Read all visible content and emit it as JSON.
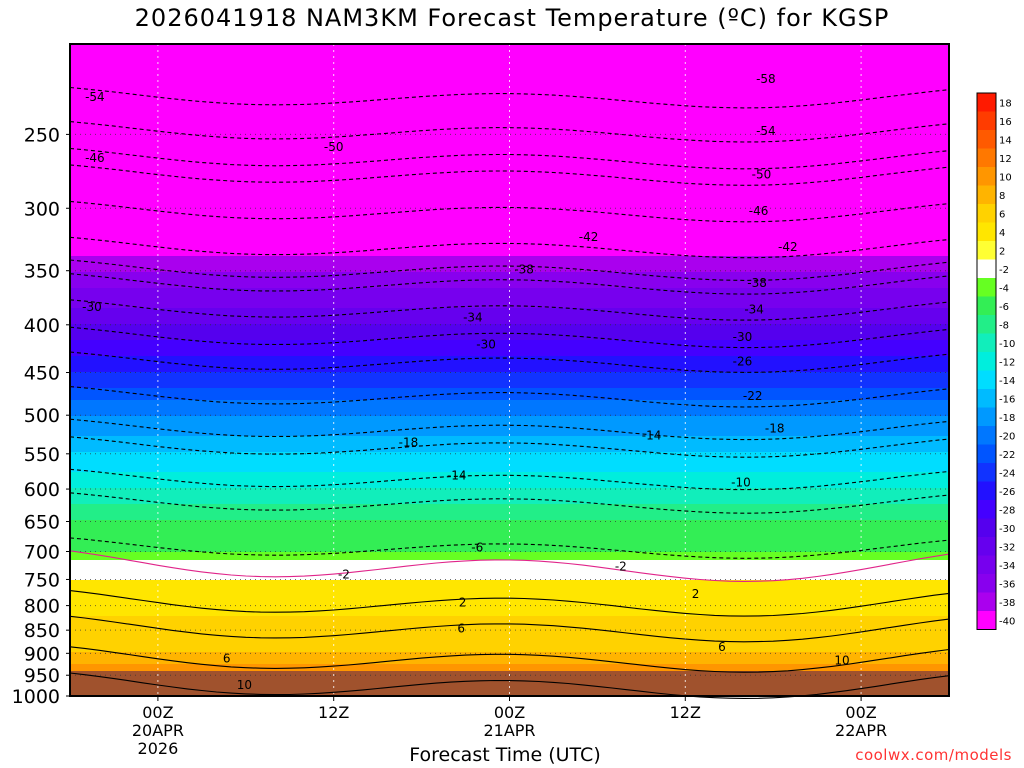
{
  "chart_data": {
    "type": "heatmap",
    "title": "2026041918 NAM3KM Forecast Temperature (ºC) for KGSP",
    "xlabel": "Forecast Time (UTC)",
    "ylabel": "",
    "credit": "coolwx.com/models",
    "x_range_hours": [
      -6,
      54
    ],
    "y_range_hpa": [
      200,
      1000
    ],
    "y_ticks": [
      250,
      300,
      350,
      400,
      450,
      500,
      550,
      600,
      650,
      700,
      750,
      800,
      850,
      900,
      950,
      1000
    ],
    "x_ticks": [
      {
        "hour": 0,
        "lines": [
          "00Z",
          "20APR",
          "2026"
        ]
      },
      {
        "hour": 12,
        "lines": [
          "12Z"
        ]
      },
      {
        "hour": 24,
        "lines": [
          "00Z",
          "21APR"
        ]
      },
      {
        "hour": 36,
        "lines": [
          "12Z"
        ]
      },
      {
        "hour": 48,
        "lines": [
          "00Z",
          "22APR"
        ]
      }
    ],
    "colorbar_labels": [
      "18",
      "16",
      "14",
      "12",
      "10",
      "8",
      "6",
      "4",
      "2",
      "-2",
      "-4",
      "-6",
      "-8",
      "-10",
      "-12",
      "-14",
      "-16",
      "-18",
      "-20",
      "-22",
      "-24",
      "-26",
      "-28",
      "-30",
      "-32",
      "-34",
      "-36",
      "-38",
      "-40"
    ],
    "colorbar_colors": [
      "#ff1a00",
      "#ff3c00",
      "#ff5a00",
      "#ff7800",
      "#ff9600",
      "#ffb400",
      "#ffd200",
      "#ffe600",
      "#ffff33",
      "#ffffff",
      "#66ff22",
      "#33ee55",
      "#22ee88",
      "#11eebb",
      "#00eedd",
      "#00ddff",
      "#00bbff",
      "#0099ff",
      "#0077ff",
      "#0055ff",
      "#1133ff",
      "#2211ff",
      "#4400ff",
      "#5500ee",
      "#6600ee",
      "#7700ee",
      "#8800ee",
      "#aa00ee",
      "#ff00ff"
    ],
    "temperature_profile": [
      {
        "hpa": 1000,
        "temp_c": 12
      },
      {
        "hpa": 950,
        "temp_c": 10
      },
      {
        "hpa": 900,
        "temp_c": 6
      },
      {
        "hpa": 850,
        "temp_c": 5
      },
      {
        "hpa": 800,
        "temp_c": 3
      },
      {
        "hpa": 750,
        "temp_c": 2
      },
      {
        "hpa": 700,
        "temp_c": -4
      },
      {
        "hpa": 650,
        "temp_c": -6
      },
      {
        "hpa": 600,
        "temp_c": -10
      },
      {
        "hpa": 550,
        "temp_c": -14
      },
      {
        "hpa": 500,
        "temp_c": -18
      },
      {
        "hpa": 450,
        "temp_c": -24
      },
      {
        "hpa": 400,
        "temp_c": -30
      },
      {
        "hpa": 350,
        "temp_c": -36
      },
      {
        "hpa": 300,
        "temp_c": -44
      },
      {
        "hpa": 250,
        "temp_c": -52
      },
      {
        "hpa": 200,
        "temp_c": -58
      }
    ],
    "contour_labels": [
      {
        "text": "-54",
        "hour": -4.3,
        "hpa": 228
      },
      {
        "text": "-46",
        "hour": -4.3,
        "hpa": 265
      },
      {
        "text": "-30",
        "hour": -4.5,
        "hpa": 383
      },
      {
        "text": "-50",
        "hour": 12.0,
        "hpa": 258
      },
      {
        "text": "-34",
        "hour": 21.5,
        "hpa": 393
      },
      {
        "text": "-30",
        "hour": 22.4,
        "hpa": 420
      },
      {
        "text": "-38",
        "hour": 25.0,
        "hpa": 349
      },
      {
        "text": "-42",
        "hour": 29.4,
        "hpa": 322
      },
      {
        "text": "-18",
        "hour": 17.1,
        "hpa": 535
      },
      {
        "text": "-14",
        "hour": 20.4,
        "hpa": 580
      },
      {
        "text": "-14",
        "hour": 33.7,
        "hpa": 526
      },
      {
        "text": "-10",
        "hour": 39.8,
        "hpa": 590
      },
      {
        "text": "-6",
        "hour": 21.8,
        "hpa": 693
      },
      {
        "text": "-2",
        "hour": 12.7,
        "hpa": 741
      },
      {
        "text": "-2",
        "hour": 31.6,
        "hpa": 726
      },
      {
        "text": "2",
        "hour": 20.8,
        "hpa": 794
      },
      {
        "text": "2",
        "hour": 36.7,
        "hpa": 777
      },
      {
        "text": "6",
        "hour": 20.7,
        "hpa": 846
      },
      {
        "text": "6",
        "hour": 38.5,
        "hpa": 886
      },
      {
        "text": "6",
        "hour": 4.7,
        "hpa": 912
      },
      {
        "text": "10",
        "hour": 5.9,
        "hpa": 973
      },
      {
        "text": "10",
        "hour": 46.7,
        "hpa": 916
      },
      {
        "text": "-58",
        "hour": 41.5,
        "hpa": 218
      },
      {
        "text": "-54",
        "hour": 41.5,
        "hpa": 248
      },
      {
        "text": "-50",
        "hour": 41.2,
        "hpa": 276
      },
      {
        "text": "-46",
        "hour": 41.0,
        "hpa": 302
      },
      {
        "text": "-42",
        "hour": 43.0,
        "hpa": 330
      },
      {
        "text": "-38",
        "hour": 40.9,
        "hpa": 361
      },
      {
        "text": "-34",
        "hour": 40.7,
        "hpa": 385
      },
      {
        "text": "-30",
        "hour": 39.9,
        "hpa": 412
      },
      {
        "text": "-26",
        "hour": 39.9,
        "hpa": 438
      },
      {
        "text": "-22",
        "hour": 40.6,
        "hpa": 477
      },
      {
        "text": "-18",
        "hour": 42.1,
        "hpa": 517
      }
    ]
  }
}
